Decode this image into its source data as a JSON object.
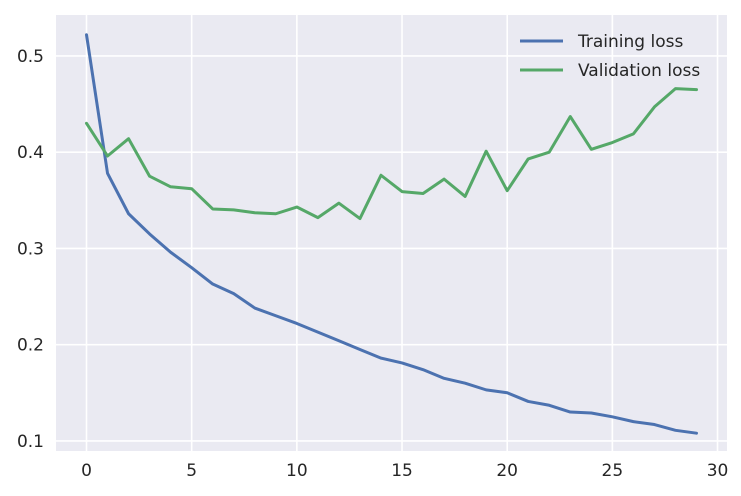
{
  "chart_data": {
    "type": "line",
    "title": "",
    "xlabel": "",
    "ylabel": "",
    "xlim": [
      -1.45,
      30.45
    ],
    "ylim": [
      0.0895,
      0.5425
    ],
    "grid": true,
    "legend_position": "top-right",
    "x_ticks": [
      0,
      5,
      10,
      15,
      20,
      25,
      30
    ],
    "x_tick_labels": [
      "0",
      "5",
      "10",
      "15",
      "20",
      "25",
      "30"
    ],
    "y_ticks": [
      0.1,
      0.2,
      0.3,
      0.4,
      0.5
    ],
    "y_tick_labels": [
      "0.1",
      "0.2",
      "0.3",
      "0.4",
      "0.5"
    ],
    "background_color": "#EAEAF2",
    "x": [
      0,
      1,
      2,
      3,
      4,
      5,
      6,
      7,
      8,
      9,
      10,
      11,
      12,
      13,
      14,
      15,
      16,
      17,
      18,
      19,
      20,
      21,
      22,
      23,
      24,
      25,
      26,
      27,
      28,
      29
    ],
    "series": [
      {
        "name": "Training loss",
        "color": "#4C72B0",
        "values": [
          0.522,
          0.378,
          0.336,
          0.315,
          0.296,
          0.28,
          0.263,
          0.253,
          0.238,
          0.23,
          0.222,
          0.213,
          0.204,
          0.195,
          0.186,
          0.181,
          0.174,
          0.165,
          0.16,
          0.153,
          0.15,
          0.141,
          0.137,
          0.13,
          0.129,
          0.125,
          0.12,
          0.117,
          0.111,
          0.108
        ]
      },
      {
        "name": "Validation loss",
        "color": "#55A868",
        "values": [
          0.43,
          0.396,
          0.414,
          0.375,
          0.364,
          0.362,
          0.341,
          0.34,
          0.337,
          0.336,
          0.343,
          0.332,
          0.347,
          0.331,
          0.376,
          0.359,
          0.357,
          0.372,
          0.354,
          0.401,
          0.36,
          0.393,
          0.4,
          0.437,
          0.403,
          0.41,
          0.419,
          0.447,
          0.466,
          0.465
        ]
      }
    ]
  }
}
